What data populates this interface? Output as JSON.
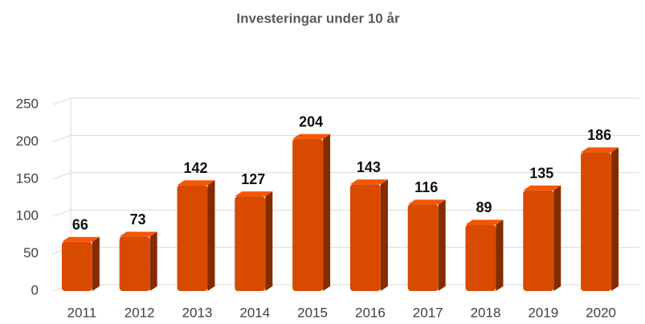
{
  "chart_data": {
    "type": "bar",
    "title": "Investeringar under 10 år",
    "categories": [
      "2011",
      "2012",
      "2013",
      "2014",
      "2015",
      "2016",
      "2017",
      "2018",
      "2019",
      "2020"
    ],
    "values": [
      66,
      73,
      142,
      127,
      204,
      143,
      116,
      89,
      135,
      186
    ],
    "color": "#d84a00",
    "ylim": [
      0,
      250
    ],
    "yticks": [
      0,
      50,
      100,
      150,
      200,
      250
    ],
    "grid": true
  }
}
